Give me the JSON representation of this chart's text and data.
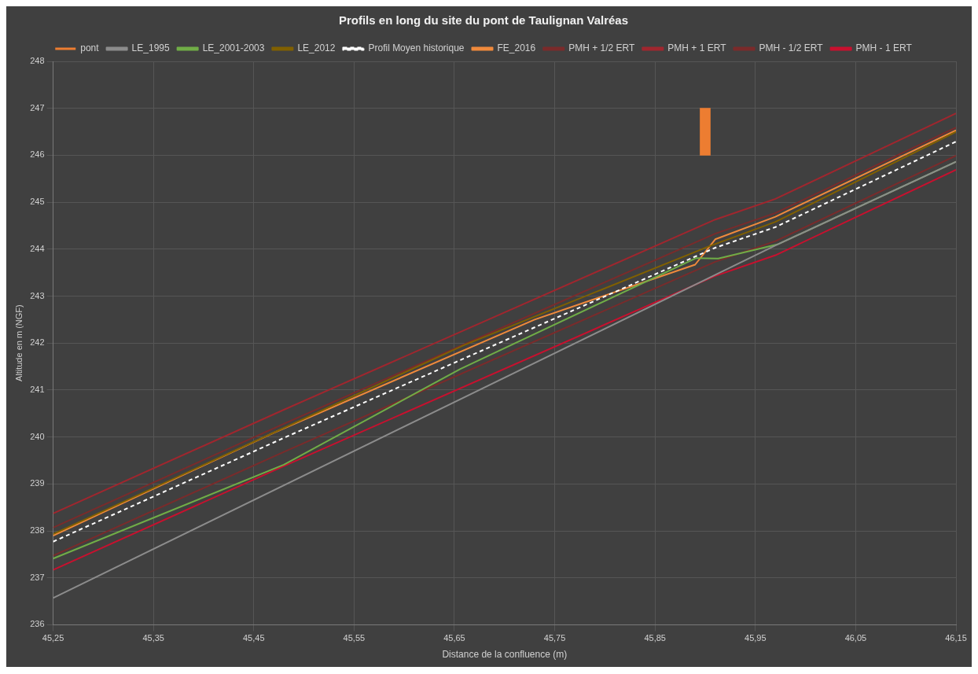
{
  "chart_data": {
    "type": "line",
    "title": "Profils en long du site du pont de Taulignan Valréas",
    "xlabel": "Distance de la confluence (m)",
    "ylabel": "Altitude en m (NGF)",
    "xlim": [
      45.25,
      46.15
    ],
    "xticks": [
      {
        "value": 45.25,
        "label": "45,25"
      },
      {
        "value": 45.35,
        "label": "45,35"
      },
      {
        "value": 45.45,
        "label": "45,45"
      },
      {
        "value": 45.55,
        "label": "45,55"
      },
      {
        "value": 45.65,
        "label": "45,65"
      },
      {
        "value": 45.75,
        "label": "45,75"
      },
      {
        "value": 45.85,
        "label": "45,85"
      },
      {
        "value": 45.95,
        "label": "45,95"
      },
      {
        "value": 46.05,
        "label": "46,05"
      },
      {
        "value": 46.15,
        "label": "46,15"
      }
    ],
    "ylim": [
      236,
      248
    ],
    "yticks": [
      236,
      237,
      238,
      239,
      240,
      241,
      242,
      243,
      244,
      245,
      246,
      247,
      248
    ],
    "grid": true,
    "legend": "top",
    "series": [
      {
        "name": "pont",
        "type": "bar",
        "color": "#ed7d31",
        "x": [
          45.9
        ],
        "base": [
          246
        ],
        "values": [
          1
        ]
      },
      {
        "name": "LE_1995",
        "color": "#8c8c8c",
        "x": [
          45.25,
          45.972,
          46.15
        ],
        "values": [
          236.57,
          244.1,
          245.86
        ]
      },
      {
        "name": "LE_2001-2003",
        "color": "#70ad47",
        "x": [
          45.25,
          45.48,
          45.656,
          45.891,
          45.913,
          45.972,
          46.15
        ],
        "values": [
          237.41,
          239.41,
          241.45,
          243.81,
          243.8,
          244.1,
          245.86
        ]
      },
      {
        "name": "LE_2012",
        "color": "#806000",
        "x": [
          45.25,
          45.66,
          45.905,
          45.97,
          46.15
        ],
        "values": [
          237.93,
          241.96,
          244.07,
          244.58,
          246.5
        ]
      },
      {
        "name": "Profil Moyen historique",
        "color": "#ffffff",
        "line_style": "dashed",
        "x": [
          45.25,
          45.48,
          45.91,
          45.97,
          46.15
        ],
        "values": [
          237.77,
          239.98,
          244.03,
          244.47,
          246.29
        ]
      },
      {
        "name": "FE_2016",
        "color": "#f08a3c",
        "x": [
          45.25,
          45.47,
          45.73,
          45.89,
          45.91,
          45.97,
          46.15
        ],
        "values": [
          237.9,
          240.09,
          242.5,
          243.67,
          244.21,
          244.69,
          246.53
        ]
      },
      {
        "name": "PMH + 1/2 ERT",
        "color": "#7a2b2b",
        "x": [
          45.25,
          45.48,
          45.91,
          45.97,
          46.15
        ],
        "values": [
          238.07,
          240.28,
          244.33,
          244.77,
          246.59
        ]
      },
      {
        "name": "PMH + 1 ERT",
        "color": "#a0262e",
        "x": [
          45.25,
          45.48,
          45.91,
          45.97,
          46.15
        ],
        "values": [
          238.37,
          240.58,
          244.63,
          245.07,
          246.89
        ]
      },
      {
        "name": "PMH - 1/2 ERT",
        "color": "#7a2b2b",
        "x": [
          45.25,
          45.48,
          45.91,
          45.97,
          46.15
        ],
        "values": [
          237.47,
          239.68,
          243.73,
          244.17,
          245.99
        ]
      },
      {
        "name": "PMH - 1 ERT",
        "color": "#c8102e",
        "x": [
          45.25,
          45.48,
          45.91,
          45.97,
          46.15
        ],
        "values": [
          237.17,
          239.38,
          243.43,
          243.87,
          245.69
        ]
      }
    ]
  }
}
